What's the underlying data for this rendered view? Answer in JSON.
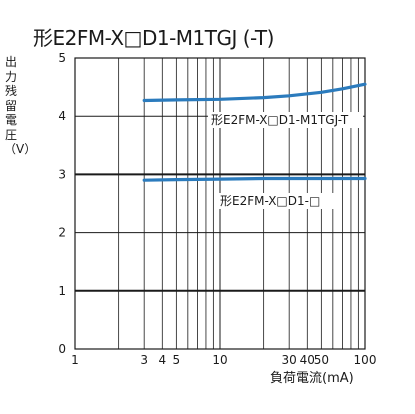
{
  "chart_data": {
    "type": "line",
    "title": "形E2FM-X□D1-M1TGJ (-T)",
    "ylabel": "出力残留電圧（V）",
    "xlabel": "負荷電流(mA)",
    "x_scale": "log",
    "xlim": [
      1,
      100
    ],
    "ylim": [
      0,
      5
    ],
    "x_ticks": [
      1,
      3,
      4,
      5,
      10,
      30,
      40,
      50,
      100
    ],
    "y_ticks": [
      0,
      1,
      2,
      3,
      4,
      5
    ],
    "grid": true,
    "series": [
      {
        "name": "形E2FM-X□D1-M1TGJ-T",
        "color": "#2b7bbd",
        "x": [
          3,
          5,
          10,
          20,
          30,
          50,
          70,
          100
        ],
        "y": [
          4.27,
          4.28,
          4.29,
          4.32,
          4.35,
          4.41,
          4.47,
          4.55
        ]
      },
      {
        "name": "形E2FM-X□D1-□",
        "color": "#2b7bbd",
        "x": [
          3,
          5,
          10,
          20,
          30,
          50,
          100
        ],
        "y": [
          2.9,
          2.91,
          2.92,
          2.93,
          2.93,
          2.93,
          2.93
        ]
      }
    ]
  }
}
